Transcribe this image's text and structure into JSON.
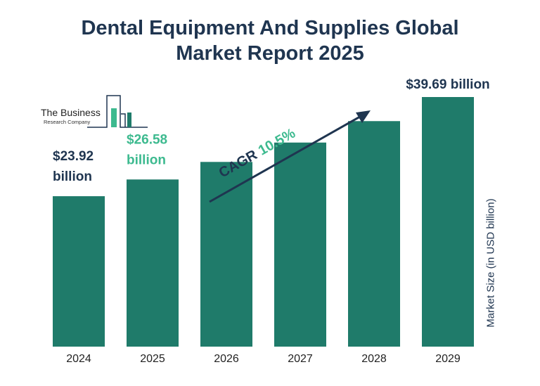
{
  "header": {
    "title_line1": "Dental Equipment And Supplies Global",
    "title_line2": "Market Report 2025"
  },
  "logo": {
    "name": "The Business",
    "sub": "Research Company"
  },
  "colors": {
    "bar": "#1f7b6a",
    "dark_label": "#1f3550",
    "highlight_label": "#3dba8f",
    "arrow": "#1f3550"
  },
  "chart_data": {
    "type": "bar",
    "title": "Dental Equipment And Supplies Global Market Report 2025",
    "categories": [
      "2024",
      "2025",
      "2026",
      "2027",
      "2028",
      "2029"
    ],
    "values": [
      23.92,
      26.58,
      29.37,
      32.45,
      35.86,
      39.69
    ],
    "ylabel": "Market Size (in USD billion)",
    "labels": [
      {
        "index": 0,
        "line1": "$23.92",
        "line2": "billion",
        "style": "dark"
      },
      {
        "index": 1,
        "line1": "$26.58",
        "line2": "billion",
        "style": "highlight"
      },
      {
        "index": 5,
        "line1": "$39.69 billion",
        "line2": "",
        "style": "dark"
      }
    ],
    "annotation": {
      "prefix": "CAGR",
      "value": "10.5%"
    },
    "grid": false,
    "legend": "none"
  }
}
